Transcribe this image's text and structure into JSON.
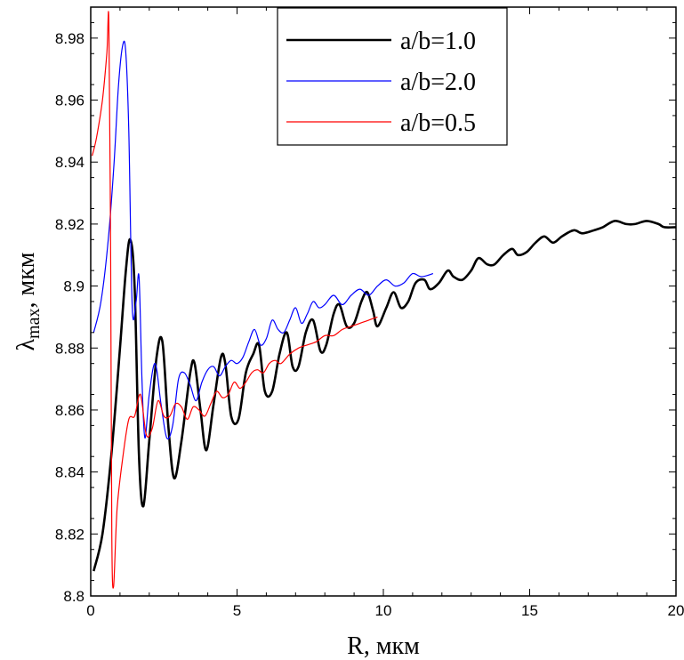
{
  "chart_data": {
    "type": "line",
    "xlabel": "R, мкм",
    "ylabel_main": "λ",
    "ylabel_sub": "max",
    "ylabel_suffix": ", мкм",
    "xlim": [
      0,
      20
    ],
    "ylim": [
      8.8,
      8.99
    ],
    "x_ticks": [
      0,
      5,
      10,
      15,
      20
    ],
    "x_tick_labels": [
      "0",
      "5",
      "10",
      "15",
      "20"
    ],
    "y_ticks": [
      8.8,
      8.82,
      8.84,
      8.86,
      8.88,
      8.9,
      8.92,
      8.94,
      8.96,
      8.98
    ],
    "y_tick_labels": [
      "8.8",
      "8.82",
      "8.84",
      "8.86",
      "8.88",
      "8.9",
      "8.92",
      "8.94",
      "8.96",
      "8.98"
    ],
    "grid": false,
    "legend": {
      "placement": "top-right"
    },
    "series": [
      {
        "name": "a/b=1.0",
        "color": "#000000",
        "x": [
          0.1,
          0.4,
          0.7,
          1.0,
          1.2,
          1.35,
          1.5,
          1.65,
          1.8,
          2.0,
          2.25,
          2.45,
          2.65,
          2.85,
          3.1,
          3.4,
          3.55,
          3.75,
          3.95,
          4.2,
          4.45,
          4.6,
          4.8,
          5.05,
          5.3,
          5.55,
          5.75,
          5.95,
          6.2,
          6.45,
          6.7,
          6.9,
          7.1,
          7.35,
          7.6,
          7.85,
          8.05,
          8.3,
          8.5,
          8.75,
          9.0,
          9.25,
          9.45,
          9.65,
          9.8,
          10.1,
          10.35,
          10.6,
          10.85,
          11.1,
          11.4,
          11.6,
          11.9,
          12.2,
          12.4,
          12.7,
          13.0,
          13.25,
          13.55,
          13.8,
          14.1,
          14.4,
          14.6,
          14.9,
          15.2,
          15.5,
          15.8,
          16.1,
          16.5,
          16.8,
          17.2,
          17.5,
          17.9,
          18.3,
          18.6,
          19.0,
          19.4,
          19.6,
          20.0
        ],
        "y": [
          8.808,
          8.82,
          8.845,
          8.88,
          8.905,
          8.915,
          8.9,
          8.845,
          8.829,
          8.85,
          8.877,
          8.882,
          8.855,
          8.838,
          8.85,
          8.872,
          8.875,
          8.86,
          8.847,
          8.862,
          8.877,
          8.875,
          8.858,
          8.857,
          8.872,
          8.878,
          8.881,
          8.866,
          8.866,
          8.878,
          8.885,
          8.874,
          8.874,
          8.885,
          8.889,
          8.879,
          8.881,
          8.891,
          8.894,
          8.887,
          8.888,
          8.895,
          8.898,
          8.892,
          8.887,
          8.893,
          8.898,
          8.893,
          8.895,
          8.901,
          8.902,
          8.899,
          8.901,
          8.905,
          8.903,
          8.902,
          8.905,
          8.909,
          8.907,
          8.907,
          8.91,
          8.912,
          8.91,
          8.911,
          8.914,
          8.916,
          8.914,
          8.916,
          8.918,
          8.917,
          8.918,
          8.919,
          8.921,
          8.92,
          8.92,
          8.921,
          8.92,
          8.919,
          8.919
        ]
      },
      {
        "name": "a/b=2.0",
        "color": "#0000ff",
        "x": [
          0.1,
          0.35,
          0.6,
          0.8,
          0.95,
          1.1,
          1.2,
          1.3,
          1.42,
          1.55,
          1.65,
          1.75,
          1.85,
          2.0,
          2.2,
          2.4,
          2.6,
          2.8,
          3.0,
          3.2,
          3.4,
          3.6,
          3.8,
          4.0,
          4.2,
          4.4,
          4.6,
          4.8,
          5.0,
          5.2,
          5.4,
          5.6,
          5.8,
          6.0,
          6.2,
          6.4,
          6.6,
          6.8,
          7.0,
          7.2,
          7.4,
          7.6,
          7.8,
          8.0,
          8.3,
          8.6,
          8.9,
          9.2,
          9.5,
          9.8,
          10.1,
          10.4,
          10.7,
          11.0,
          11.3,
          11.7
        ],
        "y": [
          8.885,
          8.895,
          8.915,
          8.94,
          8.965,
          8.978,
          8.975,
          8.95,
          8.893,
          8.895,
          8.903,
          8.87,
          8.851,
          8.865,
          8.875,
          8.862,
          8.851,
          8.855,
          8.87,
          8.872,
          8.868,
          8.863,
          8.869,
          8.873,
          8.874,
          8.871,
          8.874,
          8.876,
          8.875,
          8.877,
          8.882,
          8.886,
          8.881,
          8.883,
          8.889,
          8.886,
          8.885,
          8.889,
          8.893,
          8.888,
          8.891,
          8.895,
          8.893,
          8.894,
          8.897,
          8.894,
          8.897,
          8.899,
          8.897,
          8.9,
          8.902,
          8.9,
          8.901,
          8.904,
          8.903,
          8.904
        ]
      },
      {
        "name": "a/b=0.5",
        "color": "#ff0000",
        "x": [
          0.05,
          0.2,
          0.4,
          0.55,
          0.62,
          0.68,
          0.72,
          0.78,
          0.9,
          1.1,
          1.3,
          1.5,
          1.7,
          1.9,
          2.1,
          2.3,
          2.5,
          2.7,
          2.9,
          3.1,
          3.3,
          3.5,
          3.7,
          3.9,
          4.1,
          4.3,
          4.5,
          4.7,
          4.9,
          5.1,
          5.3,
          5.5,
          5.7,
          5.9,
          6.1,
          6.3,
          6.5,
          6.8,
          7.1,
          7.4,
          7.7,
          8.0,
          8.3,
          8.6,
          8.9,
          9.2,
          9.5,
          9.8
        ],
        "y": [
          8.942,
          8.948,
          8.96,
          8.975,
          8.985,
          8.91,
          8.82,
          8.803,
          8.828,
          8.845,
          8.857,
          8.858,
          8.865,
          8.852,
          8.854,
          8.863,
          8.858,
          8.858,
          8.862,
          8.861,
          8.857,
          8.861,
          8.86,
          8.858,
          8.862,
          8.866,
          8.864,
          8.865,
          8.869,
          8.867,
          8.869,
          8.872,
          8.873,
          8.872,
          8.875,
          8.876,
          8.875,
          8.878,
          8.88,
          8.881,
          8.882,
          8.884,
          8.884,
          8.886,
          8.887,
          8.888,
          8.889,
          8.89
        ]
      }
    ]
  }
}
